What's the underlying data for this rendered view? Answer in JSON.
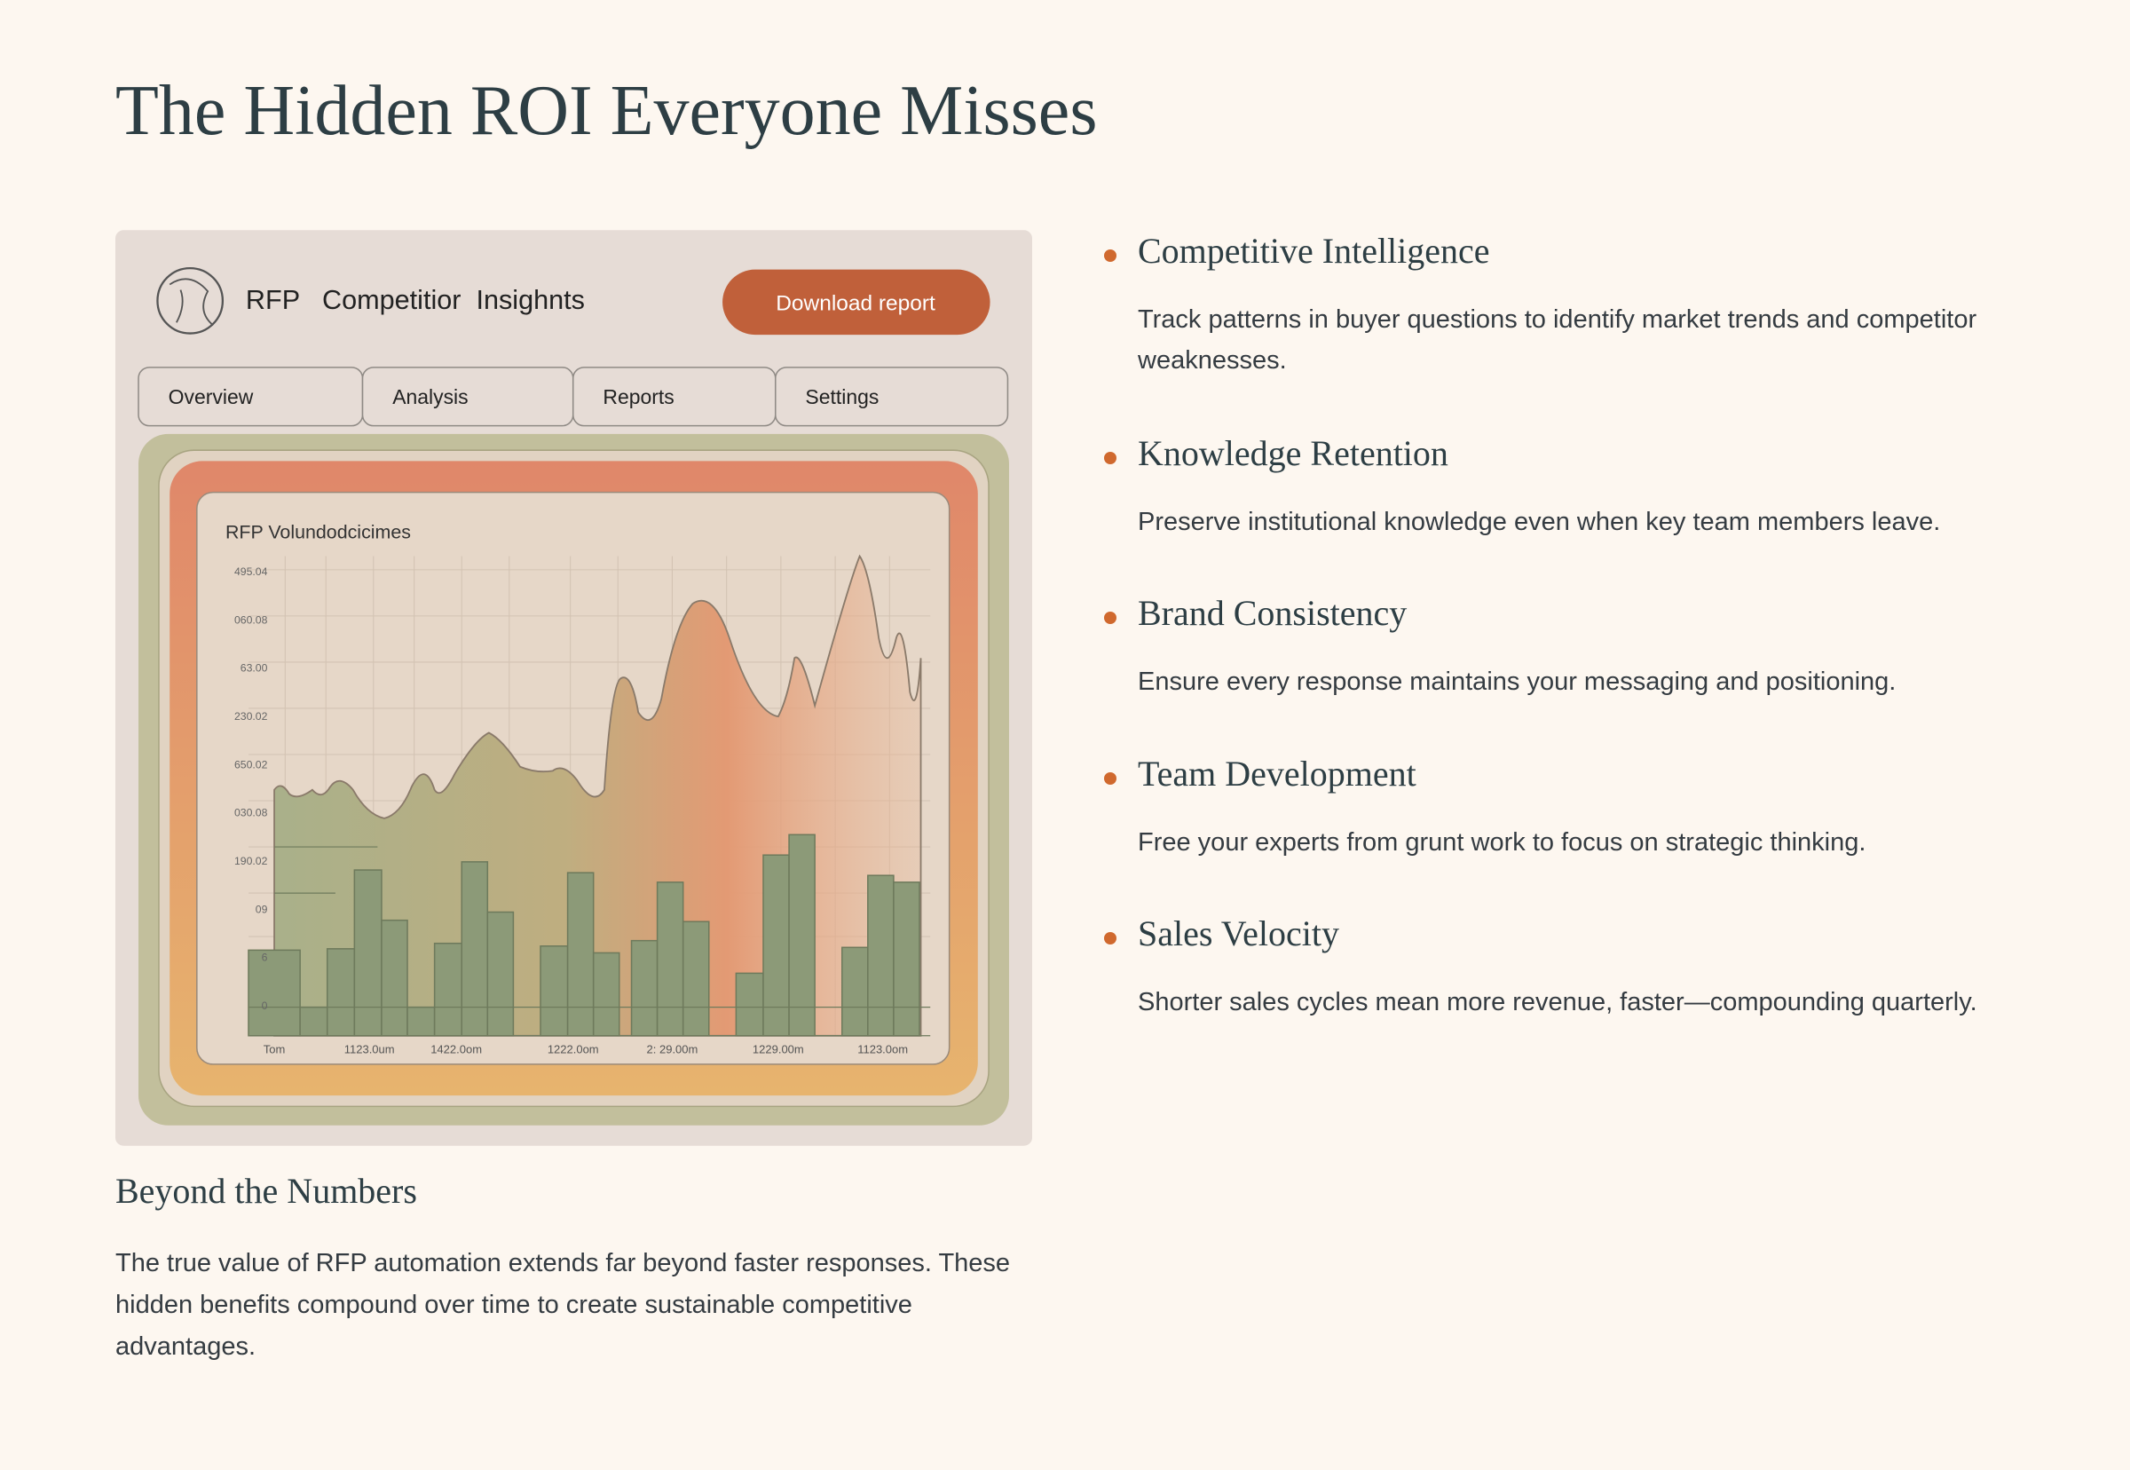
{
  "page": {
    "title": "The Hidden ROI Everyone Misses",
    "illustration": {
      "header": "RFP   Competitior  Insighnts",
      "button": "Download report",
      "tabs": [
        "Overview",
        "Analysis",
        "Reports",
        "Settings"
      ],
      "chart_title": "RFP Volundodcicimes",
      "y_labels": [
        "495.04",
        "060.08",
        "63.00",
        "230.02",
        "650.02",
        "030.08",
        "190.02",
        "09",
        "6",
        "0"
      ],
      "x_labels": [
        "Tom",
        "1123.0um",
        "1422.0om",
        "1222.0om",
        "2: 29.00m",
        "1229.00m",
        "1123.0om"
      ]
    },
    "section": {
      "heading": "Beyond the Numbers",
      "text": "The true value of RFP automation extends far beyond faster responses. These hidden benefits compound over time to create sustainable competitive advantages."
    },
    "benefits": [
      {
        "heading": "Competitive Intelligence",
        "text": "Track patterns in buyer questions to identify market trends and competitor weaknesses."
      },
      {
        "heading": "Knowledge Retention",
        "text": "Preserve institutional knowledge even when key team members leave."
      },
      {
        "heading": "Brand Consistency",
        "text": "Ensure every response maintains your messaging and positioning."
      },
      {
        "heading": "Team Development",
        "text": "Free your experts from grunt work to focus on strategic thinking."
      },
      {
        "heading": "Sales Velocity",
        "text": "Shorter sales cycles mean more revenue, faster—compounding quarterly."
      }
    ]
  }
}
